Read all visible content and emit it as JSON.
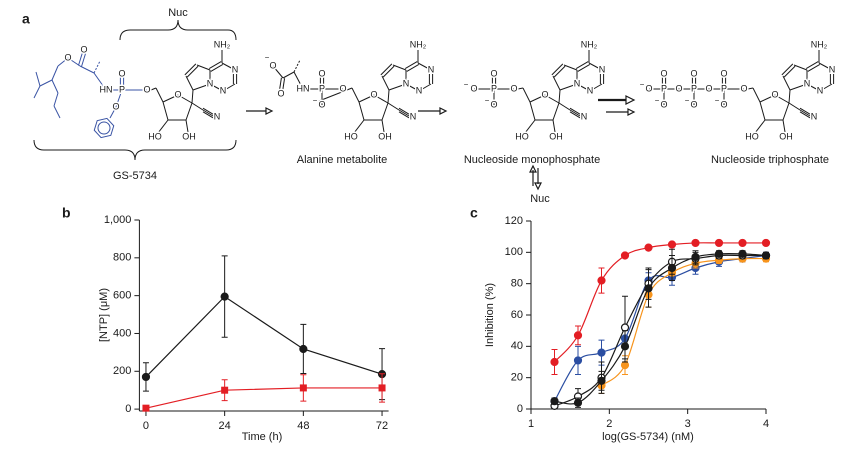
{
  "panel_labels": [
    "a",
    "b",
    "c"
  ],
  "scheme": {
    "top_label": "Nuc",
    "prodrug_name": "GS-5734",
    "side_label": "Nuc",
    "structures": [
      {
        "prefix_atoms": [
          "O",
          "O",
          "HN",
          "P",
          "O",
          "O",
          "O"
        ],
        "nucleoside_atoms": [
          "NH₂",
          "N",
          "N",
          "N",
          "O",
          "HO",
          "OH",
          "N"
        ]
      },
      {
        "name": "Alanine metabolite",
        "prefix_atoms": [
          "−",
          "O",
          "O",
          "HN",
          "P",
          "O",
          "O",
          "O",
          "−"
        ],
        "nucleoside_atoms": [
          "NH₂",
          "N",
          "N",
          "N",
          "O",
          "HO",
          "OH",
          "N"
        ]
      },
      {
        "name": "Nucleoside monophosphate",
        "prefix_atoms": [
          "−",
          "O",
          "P",
          "O",
          "O",
          "−",
          "O"
        ],
        "nucleoside_atoms": [
          "NH₂",
          "N",
          "N",
          "N",
          "O",
          "HO",
          "OH",
          "N"
        ]
      },
      {
        "name": "Nucleoside triphosphate",
        "prefix_atoms": [
          "−",
          "O",
          "P",
          "O",
          "O",
          "−",
          "O",
          "P",
          "O",
          "O",
          "−",
          "O",
          "P",
          "O",
          "O",
          "−",
          "O"
        ],
        "nucleoside_atoms": [
          "NH₂",
          "N",
          "N",
          "N",
          "O",
          "HO",
          "OH",
          "N"
        ]
      }
    ]
  },
  "chart_data": [
    {
      "type": "line",
      "xlabel": "Time (h)",
      "ylabel": "[NTP] (μM)",
      "x": [
        0,
        24,
        48,
        72
      ],
      "xlim": [
        -2,
        74
      ],
      "xticks": [
        0,
        24,
        48,
        72
      ],
      "ylim": [
        -10,
        1000
      ],
      "yticks": [
        0,
        200,
        400,
        600,
        800,
        {
          "value": 1000,
          "label": "1,000"
        }
      ],
      "series": [
        {
          "color": "#1a1a1a",
          "marker": "circle",
          "values": [
            170,
            595,
            318,
            185
          ],
          "errors": [
            75,
            215,
            130,
            135
          ]
        },
        {
          "color": "#e31e24",
          "marker": "square",
          "values": [
            5,
            100,
            112,
            112
          ],
          "errors": [
            5,
            55,
            70,
            75
          ]
        }
      ]
    },
    {
      "type": "line",
      "smooth": true,
      "xlabel": "log(GS-5734) (nM)",
      "ylabel": "Inhibition (%)",
      "x": [
        1.3,
        1.6,
        1.9,
        2.2,
        2.5,
        2.8,
        3.1,
        3.4,
        3.7,
        4.0
      ],
      "xlim": [
        1,
        4
      ],
      "xticks": [
        1,
        2,
        3,
        4
      ],
      "ylim": [
        0,
        120
      ],
      "yticks": [
        0,
        20,
        40,
        60,
        80,
        100,
        120
      ],
      "series": [
        {
          "color": "#e31e24",
          "marker": "circle",
          "values": [
            30,
            47,
            82,
            98,
            103,
            105,
            106,
            106,
            106,
            106
          ],
          "errors": [
            8,
            6,
            8,
            1,
            1,
            1,
            1,
            1,
            1,
            1
          ]
        },
        {
          "color": "#2b4ea2",
          "marker": "circle",
          "values": [
            5,
            31,
            36,
            45,
            82,
            84,
            90,
            94,
            96,
            98
          ],
          "errors": [
            2,
            9,
            8,
            6,
            5,
            5,
            4,
            3,
            2,
            2
          ]
        },
        {
          "color": "#f7941d",
          "marker": "circle",
          "values": [
            null,
            null,
            15,
            28,
            73,
            87,
            93,
            95,
            96,
            96
          ],
          "errors": [
            null,
            null,
            5,
            6,
            8,
            5,
            3,
            2,
            2,
            2
          ]
        },
        {
          "color": "#1a1a1a",
          "marker": "open-circle",
          "values": [
            2,
            8,
            20,
            52,
            80,
            94,
            96,
            98,
            98,
            98
          ],
          "errors": [
            1,
            5,
            10,
            20,
            10,
            8,
            4,
            2,
            2,
            2
          ]
        },
        {
          "color": "#1a1a1a",
          "marker": "circle",
          "values": [
            5,
            4,
            18,
            40,
            77,
            90,
            97,
            99,
            99,
            98
          ],
          "errors": [
            2,
            3,
            6,
            10,
            12,
            8,
            4,
            2,
            2,
            2
          ]
        }
      ]
    }
  ]
}
